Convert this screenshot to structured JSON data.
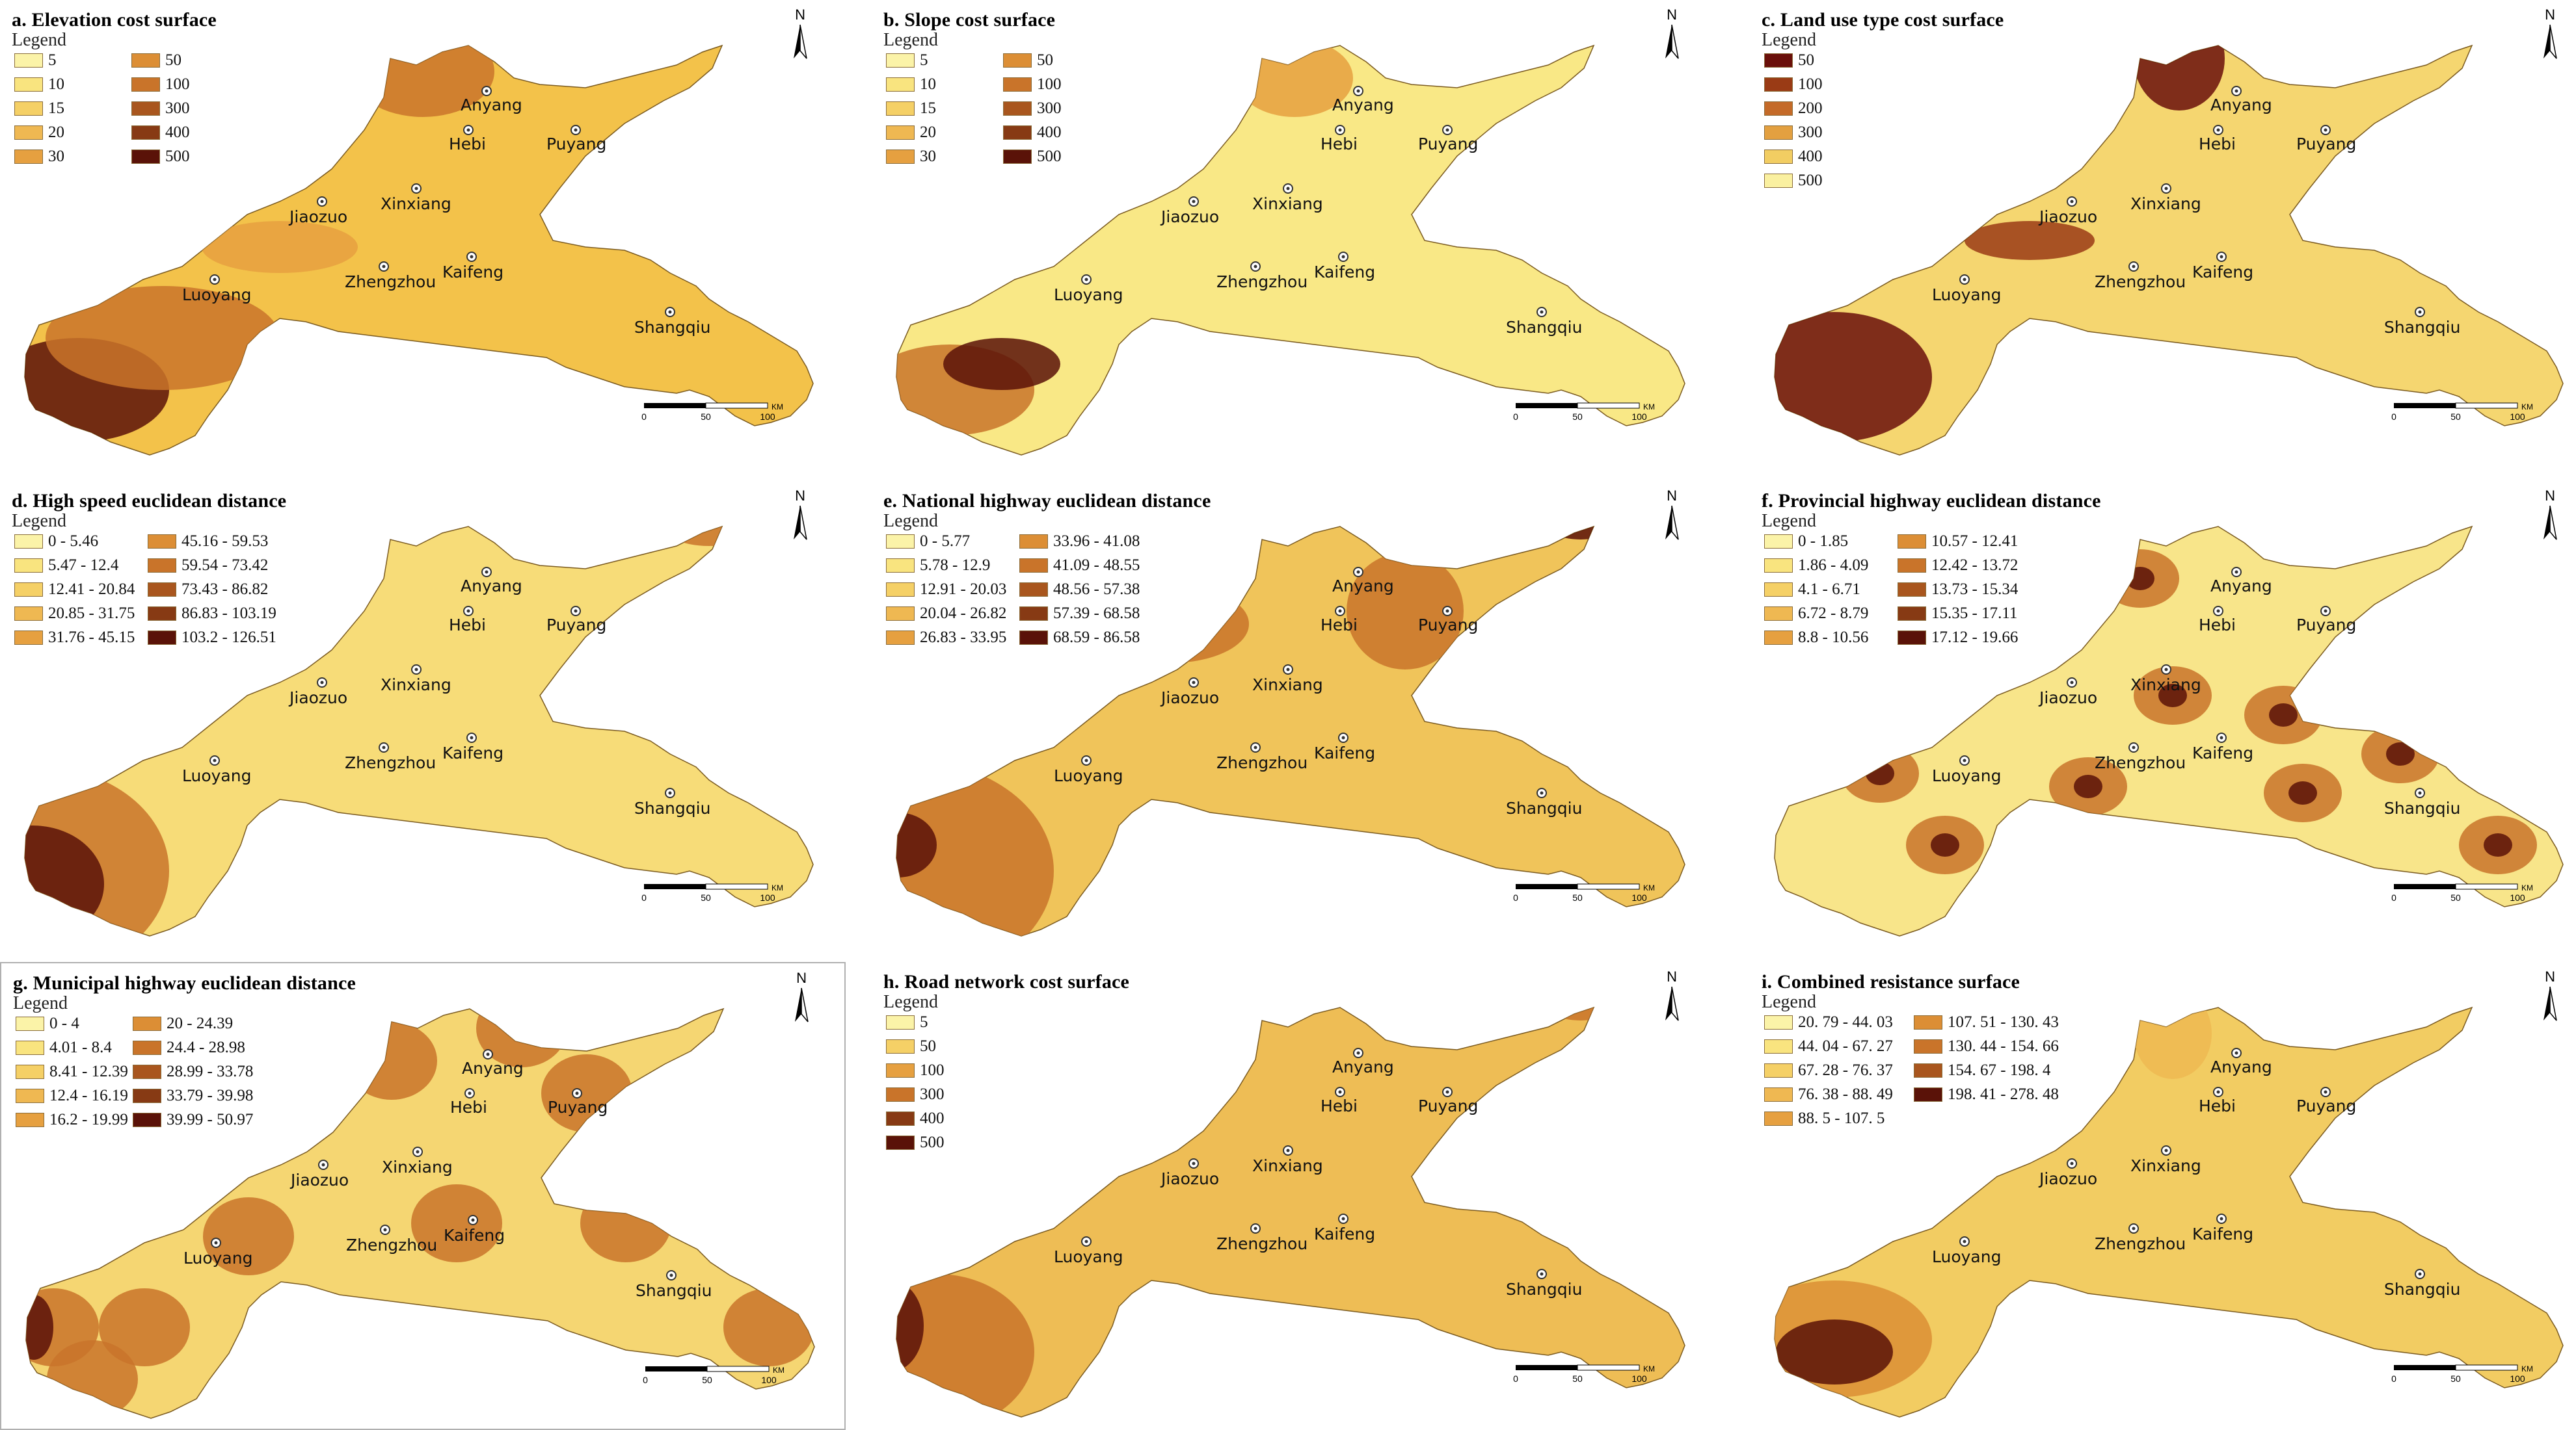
{
  "cities": [
    {
      "name": "Anyang"
    },
    {
      "name": "Hebi"
    },
    {
      "name": "Puyang"
    },
    {
      "name": "Jiaozuo"
    },
    {
      "name": "Xinxiang"
    },
    {
      "name": "Zhengzhou"
    },
    {
      "name": "Kaifeng"
    },
    {
      "name": "Luoyang"
    },
    {
      "name": "Shangqiu"
    }
  ],
  "north_label": "N",
  "scale": {
    "labels": [
      "0",
      "50",
      "100"
    ],
    "unit": "KM"
  },
  "legend_title": "Legend",
  "panels": [
    {
      "id": "a",
      "title": "a. Elevation cost surface",
      "boxed": false,
      "legend_columns": 2,
      "legend": [
        {
          "label": "5",
          "color": "#fbf3a8"
        },
        {
          "label": "10",
          "color": "#f9e47f"
        },
        {
          "label": "15",
          "color": "#f5d066"
        },
        {
          "label": "20",
          "color": "#efb852"
        },
        {
          "label": "30",
          "color": "#e6a040"
        },
        {
          "label": "50",
          "color": "#dc8e35"
        },
        {
          "label": "100",
          "color": "#c9742a"
        },
        {
          "label": "300",
          "color": "#a9561e"
        },
        {
          "label": "400",
          "color": "#873a14"
        },
        {
          "label": "500",
          "color": "#5a1208"
        }
      ],
      "map_fill": "#f3c24a",
      "scheme": "elevation"
    },
    {
      "id": "b",
      "title": "b. Slope cost surface",
      "boxed": false,
      "legend_columns": 2,
      "legend": [
        {
          "label": "5",
          "color": "#fbf3a8"
        },
        {
          "label": "10",
          "color": "#f9e47f"
        },
        {
          "label": "15",
          "color": "#f5d066"
        },
        {
          "label": "20",
          "color": "#efb852"
        },
        {
          "label": "30",
          "color": "#e6a040"
        },
        {
          "label": "50",
          "color": "#dc8e35"
        },
        {
          "label": "100",
          "color": "#c9742a"
        },
        {
          "label": "300",
          "color": "#a9561e"
        },
        {
          "label": "400",
          "color": "#873a14"
        },
        {
          "label": "500",
          "color": "#5a1208"
        }
      ],
      "map_fill": "#f9e886",
      "scheme": "slope"
    },
    {
      "id": "c",
      "title": "c. Land use type cost surface",
      "boxed": false,
      "legend_columns": 1,
      "legend": [
        {
          "label": "50",
          "color": "#6a0f0a"
        },
        {
          "label": "100",
          "color": "#9a3b15"
        },
        {
          "label": "200",
          "color": "#c46a28"
        },
        {
          "label": "300",
          "color": "#e3a040"
        },
        {
          "label": "400",
          "color": "#f2cd62"
        },
        {
          "label": "500",
          "color": "#faf0a0"
        }
      ],
      "map_fill": "#f5d670",
      "scheme": "landuse"
    },
    {
      "id": "d",
      "title": "d. High speed euclidean distance",
      "boxed": false,
      "legend_columns": 2,
      "legend": [
        {
          "label": "0 - 5.46",
          "color": "#fbf3a8"
        },
        {
          "label": "5.47 - 12.4",
          "color": "#f9e47f"
        },
        {
          "label": "12.41 - 20.84",
          "color": "#f5d066"
        },
        {
          "label": "20.85 - 31.75",
          "color": "#efb852"
        },
        {
          "label": "31.76 - 45.15",
          "color": "#e6a040"
        },
        {
          "label": "45.16 - 59.53",
          "color": "#dc8e35"
        },
        {
          "label": "59.54 - 73.42",
          "color": "#c9742a"
        },
        {
          "label": "73.43 - 86.82",
          "color": "#a9561e"
        },
        {
          "label": "86.83 - 103.19",
          "color": "#873a14"
        },
        {
          "label": "103.2 - 126.51",
          "color": "#5a1208"
        }
      ],
      "map_fill": "#f7dc78",
      "scheme": "distance"
    },
    {
      "id": "e",
      "title": "e. National highway euclidean distance",
      "boxed": false,
      "legend_columns": 2,
      "legend": [
        {
          "label": "0 - 5.77",
          "color": "#fbf3a8"
        },
        {
          "label": "5.78 - 12.9",
          "color": "#f9e47f"
        },
        {
          "label": "12.91 - 20.03",
          "color": "#f5d066"
        },
        {
          "label": "20.04 - 26.82",
          "color": "#efb852"
        },
        {
          "label": "26.83 - 33.95",
          "color": "#e6a040"
        },
        {
          "label": "33.96 - 41.08",
          "color": "#dc8e35"
        },
        {
          "label": "41.09 - 48.55",
          "color": "#c9742a"
        },
        {
          "label": "48.56 - 57.38",
          "color": "#a9561e"
        },
        {
          "label": "57.39 - 68.58",
          "color": "#873a14"
        },
        {
          "label": "68.59 - 86.58",
          "color": "#5a1208"
        }
      ],
      "map_fill": "#f0c45a",
      "scheme": "distance2"
    },
    {
      "id": "f",
      "title": "f. Provincial highway euclidean distance",
      "boxed": false,
      "legend_columns": 2,
      "legend": [
        {
          "label": "0 - 1.85",
          "color": "#fbf3a8"
        },
        {
          "label": "1.86 - 4.09",
          "color": "#f9e47f"
        },
        {
          "label": "4.1 - 6.71",
          "color": "#f5d066"
        },
        {
          "label": "6.72 - 8.79",
          "color": "#efb852"
        },
        {
          "label": "8.8 - 10.56",
          "color": "#e6a040"
        },
        {
          "label": "10.57 - 12.41",
          "color": "#dc8e35"
        },
        {
          "label": "12.42 - 13.72",
          "color": "#c9742a"
        },
        {
          "label": "13.73 - 15.34",
          "color": "#a9561e"
        },
        {
          "label": "15.35 - 17.11",
          "color": "#873a14"
        },
        {
          "label": "17.12 - 19.66",
          "color": "#5a1208"
        }
      ],
      "map_fill": "#f8e58a",
      "scheme": "provincial"
    },
    {
      "id": "g",
      "title": "g. Municipal highway euclidean distance",
      "boxed": true,
      "legend_columns": 2,
      "legend": [
        {
          "label": "0 - 4",
          "color": "#fbf3a8"
        },
        {
          "label": "4.01 - 8.4",
          "color": "#f9e47f"
        },
        {
          "label": "8.41 - 12.39",
          "color": "#f5d066"
        },
        {
          "label": "12.4 - 16.19",
          "color": "#efb852"
        },
        {
          "label": "16.2 - 19.99",
          "color": "#e6a040"
        },
        {
          "label": "20 - 24.39",
          "color": "#dc8e35"
        },
        {
          "label": "24.4 - 28.98",
          "color": "#c9742a"
        },
        {
          "label": "28.99 - 33.78",
          "color": "#a9561e"
        },
        {
          "label": "33.79 - 39.98",
          "color": "#873a14"
        },
        {
          "label": "39.99 - 50.97",
          "color": "#5a1208"
        }
      ],
      "map_fill": "#f5d672",
      "scheme": "municipal"
    },
    {
      "id": "h",
      "title": "h. Road network cost surface",
      "boxed": false,
      "legend_columns": 1,
      "legend": [
        {
          "label": "5",
          "color": "#fbf3a8"
        },
        {
          "label": "50",
          "color": "#f5d066"
        },
        {
          "label": "100",
          "color": "#e6a040"
        },
        {
          "label": "300",
          "color": "#c9742a"
        },
        {
          "label": "400",
          "color": "#873a14"
        },
        {
          "label": "500",
          "color": "#5a1208"
        }
      ],
      "map_fill": "#eebd55",
      "scheme": "road"
    },
    {
      "id": "i",
      "title": "i. Combined resistance surface",
      "boxed": false,
      "legend_columns": 2,
      "legend": [
        {
          "label": "20. 79 - 44. 03",
          "color": "#fbf3a8"
        },
        {
          "label": "44. 04 - 67. 27",
          "color": "#f9e47f"
        },
        {
          "label": "67. 28 - 76. 37",
          "color": "#f5d066"
        },
        {
          "label": "76. 38 - 88. 49",
          "color": "#efb852"
        },
        {
          "label": "88. 5 - 107. 5",
          "color": "#e6a040"
        },
        {
          "label": "107. 51 - 130. 43",
          "color": "#dc8e35"
        },
        {
          "label": "130. 44 - 154. 66",
          "color": "#c9742a"
        },
        {
          "label": "154. 67 - 198. 4",
          "color": "#a9561e"
        },
        {
          "label": "198. 41 - 278. 48",
          "color": "#5a1208"
        }
      ],
      "map_fill": "#f2cc62",
      "scheme": "combined"
    }
  ]
}
